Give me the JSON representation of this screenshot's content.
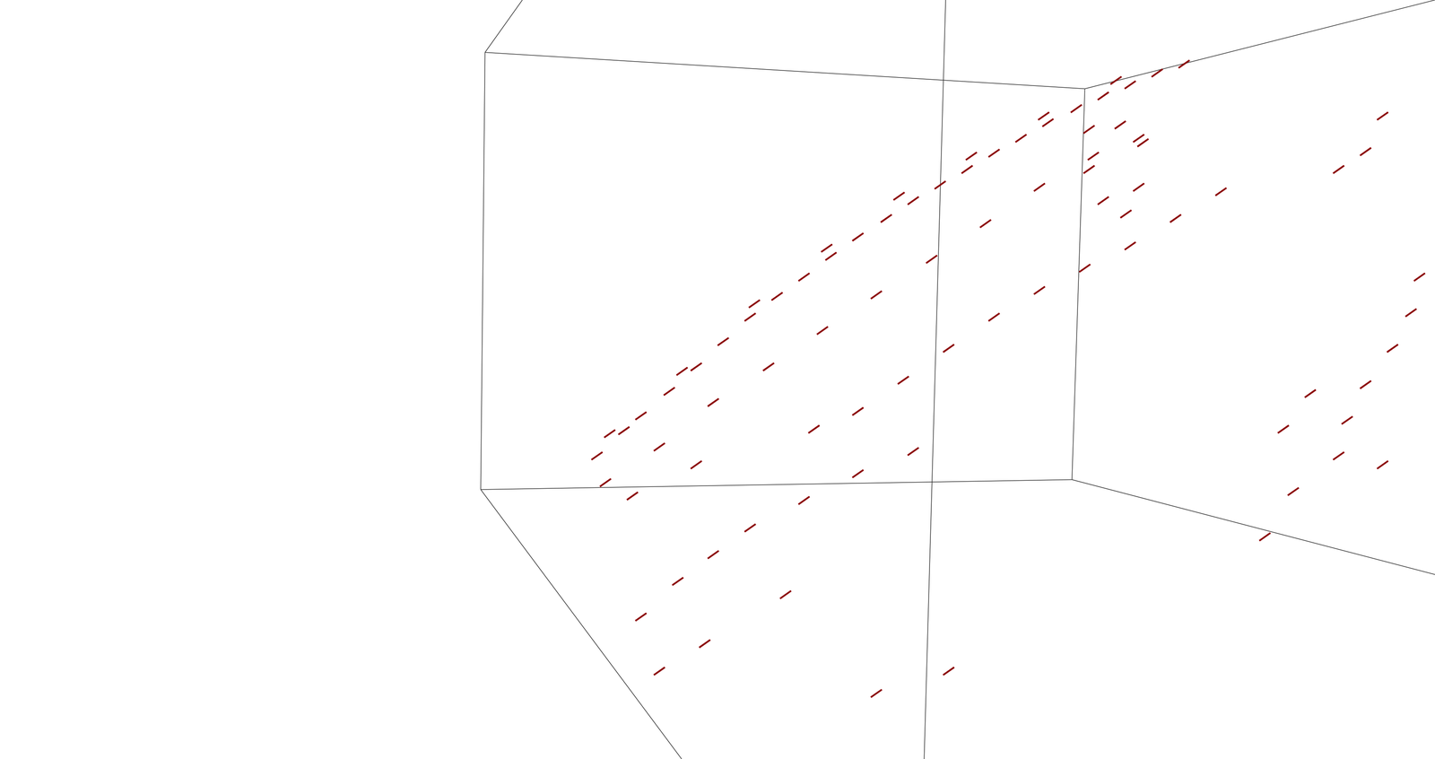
{
  "chart_data": {
    "type": "scatter",
    "color": "#8b0000",
    "marker": "line",
    "grid": false,
    "tick_labels": false,
    "xlim": [
      0,
      100
    ],
    "ylim": [
      0,
      100
    ],
    "x": [
      41.5,
      43.4,
      44.6,
      46.6,
      48.5,
      50.4,
      52.3,
      54.2,
      56.1,
      58.0,
      59.9,
      61.9,
      63.8,
      65.7,
      67.6,
      69.5,
      71.4,
      73.3,
      75.3,
      77.2,
      79.1,
      81.0,
      82.9,
      42.4,
      47.5,
      52.6,
      57.7,
      62.8,
      67.9,
      73.0,
      78.1,
      42.1,
      45.9,
      49.7,
      53.6,
      57.4,
      61.2,
      65.1,
      68.9,
      72.7,
      76.5,
      79.7,
      44.0,
      48.5,
      76.2,
      78.4,
      80.0,
      79.7,
      78.8,
      77.2,
      76.2,
      85.5,
      82.3,
      79.1,
      75.9,
      72.7,
      69.5,
      66.3,
      63.1,
      59.9,
      56.8,
      63.8,
      59.9,
      56.1,
      52.3,
      49.7,
      47.2,
      44.6,
      45.9,
      49.1,
      54.8,
      61.2,
      66.3,
      99.5,
      98.9,
      97.6,
      95.7,
      94.4,
      91.8,
      89.9,
      93.8,
      96.9,
      90.6,
      88.6,
      93.8,
      95.7,
      96.9
    ],
    "values": [
      39.7,
      43.1,
      45.1,
      48.4,
      51.7,
      55.1,
      58.4,
      61.2,
      63.8,
      66.6,
      69.2,
      71.7,
      74.1,
      76.2,
      78.3,
      80.5,
      82.5,
      84.6,
      86.5,
      88.2,
      89.7,
      91.3,
      92.5,
      42.7,
      51.1,
      60.2,
      67.7,
      74.7,
      80.1,
      85.5,
      90.3,
      36.1,
      40.9,
      46.9,
      51.7,
      56.6,
      61.4,
      66.2,
      71.0,
      75.9,
      80.1,
      82.5,
      34.3,
      38.5,
      83.7,
      84.3,
      81.9,
      75.9,
      72.3,
      74.1,
      78.3,
      75.3,
      71.7,
      68.0,
      65.0,
      62.0,
      58.4,
      54.2,
      49.9,
      45.7,
      43.3,
      40.3,
      37.3,
      33.7,
      30.0,
      26.4,
      22.8,
      18.0,
      10.7,
      14.4,
      21.0,
      7.7,
      10.7,
      63.8,
      59.0,
      54.2,
      49.3,
      44.5,
      48.1,
      43.3,
      39.7,
      38.5,
      34.9,
      28.8,
      78.3,
      80.7,
      85.5
    ]
  }
}
